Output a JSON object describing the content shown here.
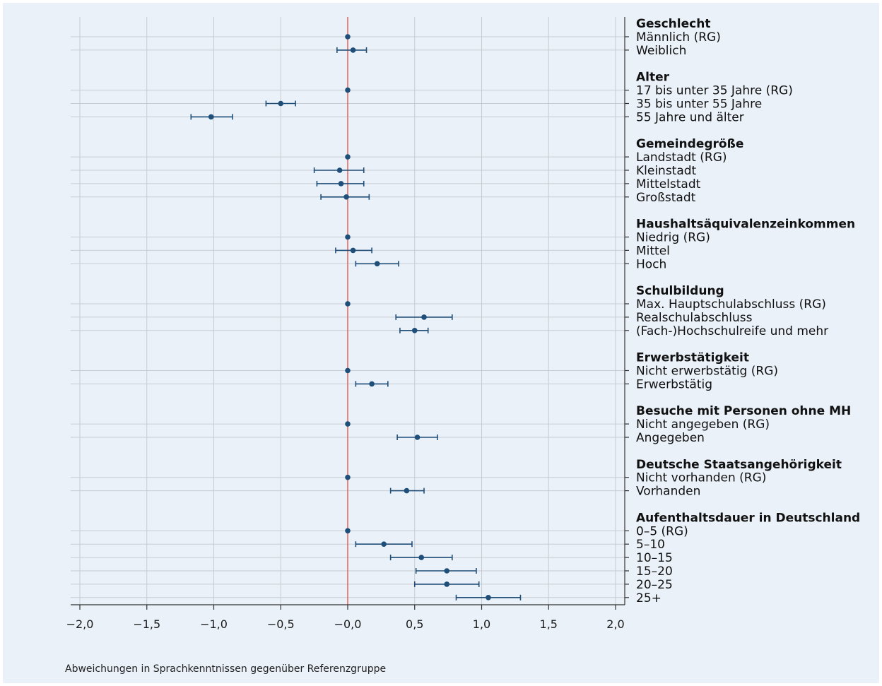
{
  "chart_data": {
    "type": "scatter",
    "subtype": "coefficient-plot-with-confidence-intervals",
    "xlabel": "Abweichungen in Sprachkenntnissen gegenüber Referenzgruppe",
    "xlim": [
      -2.0,
      2.0
    ],
    "xticks": [
      -2.0,
      -1.5,
      -1.0,
      -0.5,
      0.0,
      0.5,
      1.0,
      1.5,
      2.0
    ],
    "xtick_labels": [
      "−2,0",
      "−1,5",
      "−1,0",
      "−0,5",
      "−0,0",
      "0,5",
      "1,0",
      "1,5",
      "2,0"
    ],
    "reference_line": 0,
    "grid": true,
    "colors": {
      "point": "#1f4e79",
      "reference_line": "#e05a4f",
      "background": "#eaf1f9",
      "grid": "#c8ccd2"
    },
    "groups": [
      {
        "name": "Geschlecht",
        "items": [
          {
            "label": "Männlich (RG)",
            "estimate": 0.0,
            "ci_low": null,
            "ci_high": null
          },
          {
            "label": "Weiblich",
            "estimate": 0.04,
            "ci_low": -0.08,
            "ci_high": 0.14
          }
        ]
      },
      {
        "name": "Alter",
        "items": [
          {
            "label": "17 bis unter 35 Jahre (RG)",
            "estimate": 0.0,
            "ci_low": null,
            "ci_high": null
          },
          {
            "label": "35 bis unter 55 Jahre",
            "estimate": -0.5,
            "ci_low": -0.61,
            "ci_high": -0.39
          },
          {
            "label": "55 Jahre und älter",
            "estimate": -1.02,
            "ci_low": -1.17,
            "ci_high": -0.86
          }
        ]
      },
      {
        "name": "Gemeindegröße",
        "items": [
          {
            "label": "Landstadt (RG)",
            "estimate": 0.0,
            "ci_low": null,
            "ci_high": null
          },
          {
            "label": "Kleinstadt",
            "estimate": -0.06,
            "ci_low": -0.25,
            "ci_high": 0.12
          },
          {
            "label": "Mittelstadt",
            "estimate": -0.05,
            "ci_low": -0.23,
            "ci_high": 0.12
          },
          {
            "label": "Großstadt",
            "estimate": -0.01,
            "ci_low": -0.2,
            "ci_high": 0.16
          }
        ]
      },
      {
        "name": "Haushaltsäquivalenzeinkommen",
        "items": [
          {
            "label": "Niedrig (RG)",
            "estimate": 0.0,
            "ci_low": null,
            "ci_high": null
          },
          {
            "label": "Mittel",
            "estimate": 0.04,
            "ci_low": -0.09,
            "ci_high": 0.18
          },
          {
            "label": "Hoch",
            "estimate": 0.22,
            "ci_low": 0.06,
            "ci_high": 0.38
          }
        ]
      },
      {
        "name": "Schulbildung",
        "items": [
          {
            "label": "Max. Hauptschulabschluss (RG)",
            "estimate": 0.0,
            "ci_low": null,
            "ci_high": null
          },
          {
            "label": "Realschulabschluss",
            "estimate": 0.57,
            "ci_low": 0.36,
            "ci_high": 0.78
          },
          {
            "label": "(Fach-)Hochschulreife und mehr",
            "estimate": 0.5,
            "ci_low": 0.39,
            "ci_high": 0.6
          }
        ]
      },
      {
        "name": "Erwerbstätigkeit",
        "items": [
          {
            "label": "Nicht erwerbstätig (RG)",
            "estimate": 0.0,
            "ci_low": null,
            "ci_high": null
          },
          {
            "label": "Erwerbstätig",
            "estimate": 0.18,
            "ci_low": 0.06,
            "ci_high": 0.3
          }
        ]
      },
      {
        "name": "Besuche mit Personen ohne MH",
        "items": [
          {
            "label": "Nicht angegeben (RG)",
            "estimate": 0.0,
            "ci_low": null,
            "ci_high": null
          },
          {
            "label": "Angegeben",
            "estimate": 0.52,
            "ci_low": 0.37,
            "ci_high": 0.67
          }
        ]
      },
      {
        "name": "Deutsche Staatsangehörigkeit",
        "items": [
          {
            "label": "Nicht vorhanden (RG)",
            "estimate": 0.0,
            "ci_low": null,
            "ci_high": null
          },
          {
            "label": "Vorhanden",
            "estimate": 0.44,
            "ci_low": 0.32,
            "ci_high": 0.57
          }
        ]
      },
      {
        "name": "Aufenthaltsdauer in Deutschland",
        "items": [
          {
            "label": "0–5 (RG)",
            "estimate": 0.0,
            "ci_low": null,
            "ci_high": null
          },
          {
            "label": "5–10",
            "estimate": 0.27,
            "ci_low": 0.06,
            "ci_high": 0.48
          },
          {
            "label": "10–15",
            "estimate": 0.55,
            "ci_low": 0.32,
            "ci_high": 0.78
          },
          {
            "label": "15–20",
            "estimate": 0.74,
            "ci_low": 0.51,
            "ci_high": 0.96
          },
          {
            "label": "20–25",
            "estimate": 0.74,
            "ci_low": 0.5,
            "ci_high": 0.98
          },
          {
            "label": "25+",
            "estimate": 1.05,
            "ci_low": 0.81,
            "ci_high": 1.29
          }
        ]
      }
    ]
  }
}
